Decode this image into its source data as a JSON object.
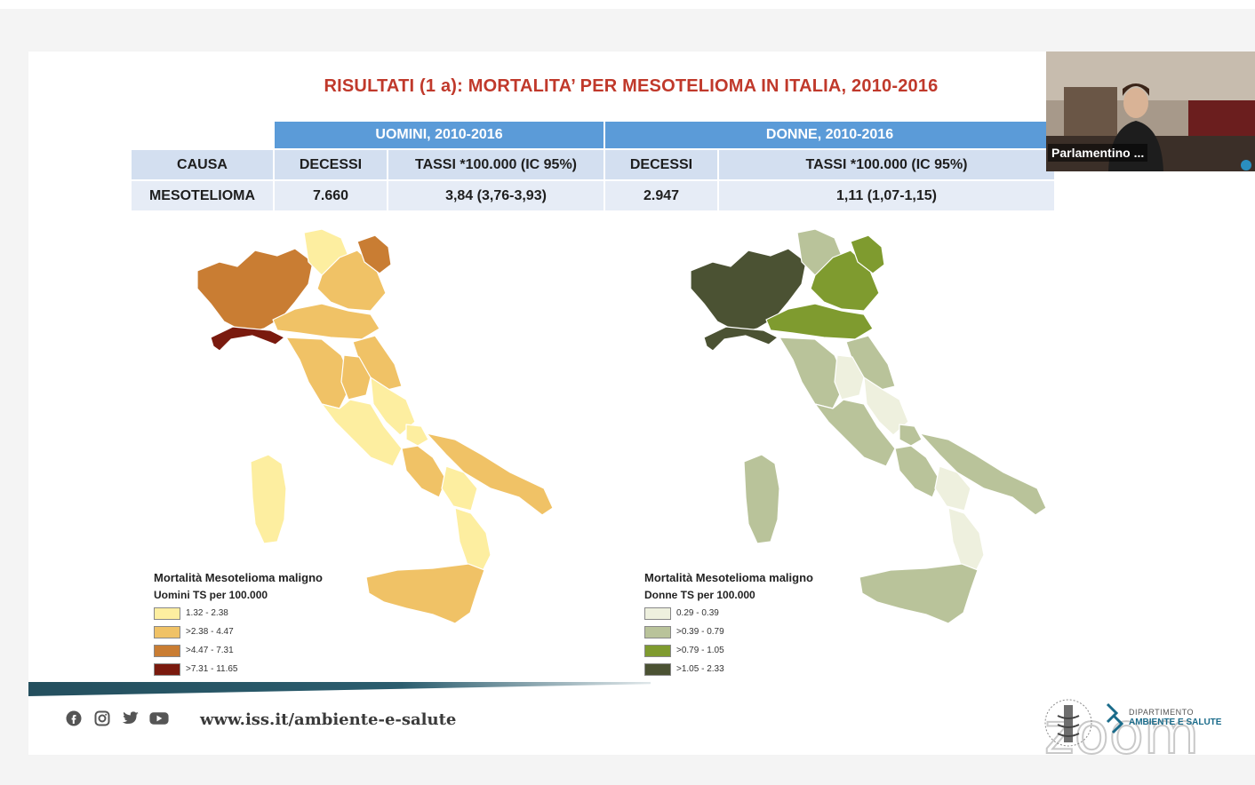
{
  "slide": {
    "title": "RISULTATI (1 a): MORTALITA’ PER MESOTELIOMA IN ITALIA, 2010-2016",
    "title_color": "#c0392b"
  },
  "table": {
    "group_men": "UOMINI, 2010-2016",
    "group_women": "DONNE, 2010-2016",
    "headers": [
      "CAUSA",
      "DECESSI",
      "TASSI *100.000 (IC 95%)",
      "DECESSI",
      "TASSI *100.000 (IC 95%)"
    ],
    "row": [
      "MESOTELIOMA",
      "7.660",
      "3,84 (3,76-3,93)",
      "2.947",
      "1,11 (1,07-1,15)"
    ]
  },
  "map_men": {
    "legend_title": "Mortalità Mesotelioma maligno",
    "legend_subtitle": "Uomini TS per 100.000",
    "classes": [
      {
        "label": "1.32 - 2.38",
        "color": "#fdeea0"
      },
      {
        "label": ">2.38 - 4.47",
        "color": "#f0c266"
      },
      {
        "label": ">4.47 - 7.31",
        "color": "#c97d33"
      },
      {
        "label": ">7.31 - 11.65",
        "color": "#7a1a0e"
      }
    ]
  },
  "map_women": {
    "legend_title": "Mortalità Mesotelioma maligno",
    "legend_subtitle": "Donne TS per 100.000",
    "classes": [
      {
        "label": "0.29 - 0.39",
        "color": "#eef0de"
      },
      {
        "label": ">0.39 - 0.79",
        "color": "#b9c39a"
      },
      {
        "label": ">0.79 - 1.05",
        "color": "#7f9b2f"
      },
      {
        "label": ">1.05 - 2.33",
        "color": "#4b5233"
      }
    ]
  },
  "footer": {
    "url": "www.iss.it/ambiente-e-salute",
    "social_icons": [
      "facebook-icon",
      "instagram-icon",
      "twitter-icon",
      "youtube-icon"
    ],
    "dept_line1": "DIPARTIMENTO",
    "dept_line2": "AMBIENTE E SALUTE",
    "zoom_watermark": "zoom"
  },
  "video_tile": {
    "participant_name": "Parlamentino ..."
  }
}
